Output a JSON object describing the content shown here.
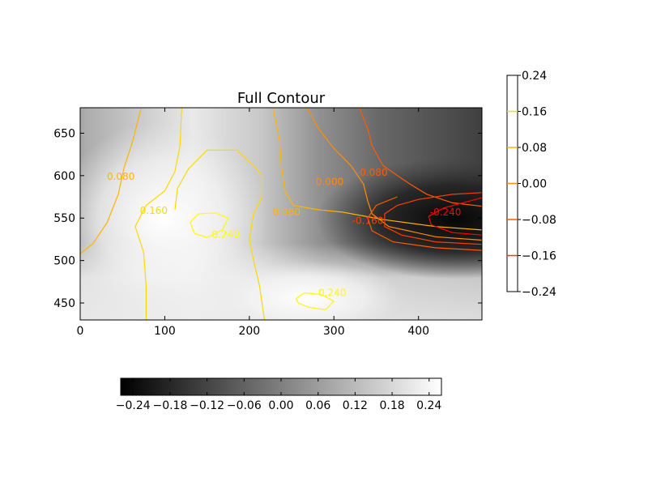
{
  "chart_data": {
    "type": "heatmap",
    "title": "Full Contour",
    "xlabel": "",
    "ylabel": "",
    "xlim": [
      0,
      475
    ],
    "ylim": [
      430,
      680
    ],
    "xticks": [
      "0",
      "100",
      "200",
      "300",
      "400"
    ],
    "yticks": [
      "450",
      "500",
      "550",
      "600",
      "650"
    ],
    "colormap": "gray",
    "contour_colormap": "autumn",
    "contour_levels": [
      -0.24,
      -0.16,
      -0.08,
      0.0,
      0.08,
      0.16,
      0.24
    ],
    "contour_labels": [
      {
        "text": "0.080",
        "x": 48,
        "y": 595,
        "color": "#ffb400"
      },
      {
        "text": "0.160",
        "x": 87,
        "y": 555,
        "color": "#ffd800"
      },
      {
        "text": "0.240",
        "x": 172,
        "y": 527,
        "color": "#ffff00"
      },
      {
        "text": "0.240",
        "x": 298,
        "y": 458,
        "color": "#ffff00"
      },
      {
        "text": "0.080",
        "x": 244,
        "y": 553,
        "color": "#ffb400"
      },
      {
        "text": "0.000",
        "x": 295,
        "y": 589,
        "color": "#ff8c00"
      },
      {
        "text": "-0.080",
        "x": 345,
        "y": 600,
        "color": "#ff5a00"
      },
      {
        "text": "-0.160",
        "x": 340,
        "y": 543,
        "color": "#ff3c00"
      },
      {
        "text": "-0.240",
        "x": 432,
        "y": 553,
        "color": "#ff0000"
      }
    ],
    "colorbar_vertical": {
      "ticks": [
        "0.24",
        "0.16",
        "0.08",
        "0.00",
        "−0.08",
        "−0.16",
        "−0.24"
      ],
      "level_colors": [
        "#ffff00",
        "#ffd800",
        "#ffb400",
        "#ff8c00",
        "#ff5a00",
        "#ff3c00",
        "#ff0000"
      ]
    },
    "colorbar_horizontal": {
      "ticks": [
        "−0.24",
        "−0.18",
        "−0.12",
        "−0.06",
        "0.00",
        "0.06",
        "0.12",
        "0.18",
        "0.24"
      ],
      "range": [
        -0.26,
        0.26
      ]
    }
  }
}
